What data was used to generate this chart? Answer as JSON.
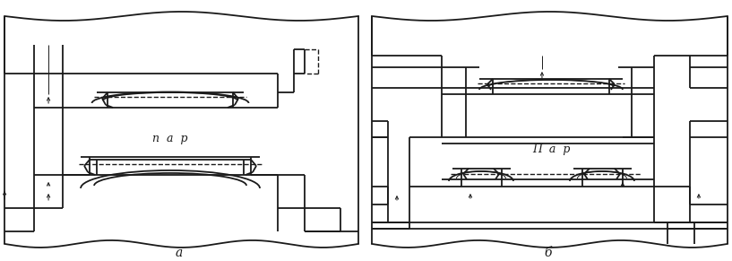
{
  "figure_width": 8.17,
  "figure_height": 2.91,
  "dpi": 100,
  "bg_color": "#ffffff",
  "line_color": "#1a1a1a",
  "label_a": "a",
  "label_b": "б",
  "text_par_a": "п  а  р",
  "text_par_b": "П  а  р",
  "lw": 1.3,
  "tlw": 0.7,
  "dlw": 1.0
}
